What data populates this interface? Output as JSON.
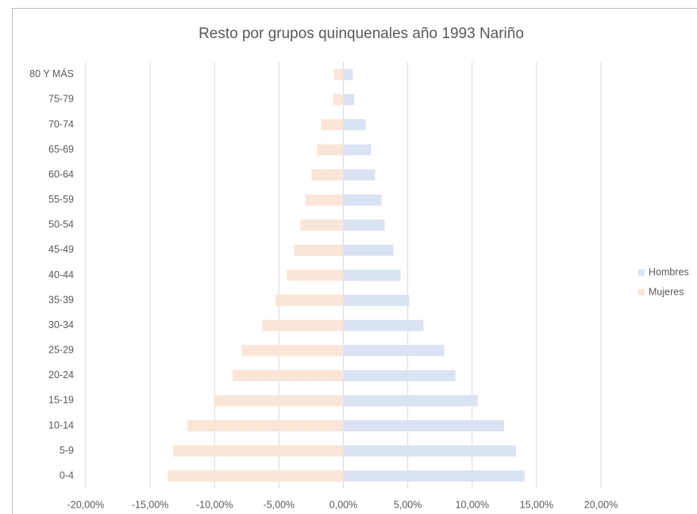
{
  "chart_data": {
    "type": "bar",
    "orientation": "horizontal",
    "stacked": true,
    "title": "Resto por grupos quinquenales año 1993 Nariño",
    "categories": [
      "0-4",
      "5-9",
      "10-14",
      "15-19",
      "20-24",
      "25-29",
      "30-34",
      "35-39",
      "40-44",
      "45-49",
      "50-54",
      "55-59",
      "60-64",
      "65-69",
      "70-74",
      "75-79",
      "80 Y MÁS"
    ],
    "series": [
      {
        "name": "Hombres",
        "color": "#dae3f3",
        "values": [
          14.07,
          13.4,
          12.47,
          10.43,
          8.7,
          7.84,
          6.23,
          5.12,
          4.44,
          3.89,
          3.21,
          2.96,
          2.47,
          2.16,
          1.73,
          0.86,
          0.74
        ]
      },
      {
        "name": "Mujeres",
        "color": "#fbe5d6",
        "values": [
          -13.64,
          -13.2,
          -12.1,
          -10.0,
          -8.58,
          -7.9,
          -6.3,
          -5.25,
          -4.38,
          -3.83,
          -3.33,
          -2.96,
          -2.47,
          -2.04,
          -1.73,
          -0.8,
          -0.74
        ]
      }
    ],
    "xlim": [
      -20,
      20
    ],
    "xticks": [
      {
        "value": -20,
        "label": "-20,00%"
      },
      {
        "value": -15,
        "label": "-15,00%"
      },
      {
        "value": -10,
        "label": "-10,00%"
      },
      {
        "value": -5,
        "label": "-5,00%"
      },
      {
        "value": 0,
        "label": "0,00%"
      },
      {
        "value": 5,
        "label": "5,00%"
      },
      {
        "value": 10,
        "label": "10,00%"
      },
      {
        "value": 15,
        "label": "15,00%"
      },
      {
        "value": 20,
        "label": "20,00%"
      }
    ],
    "grid": true,
    "legend": "right"
  }
}
